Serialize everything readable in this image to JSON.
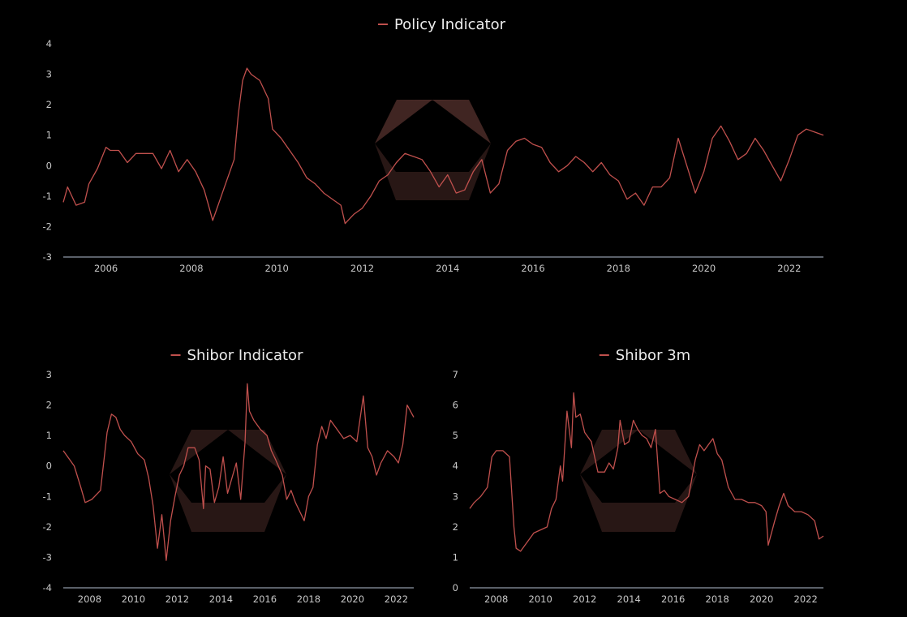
{
  "colors": {
    "background": "#000000",
    "series": "#c0504d",
    "axis": "#8f9aa8",
    "tick_text": "#c8c8c8",
    "legend_text": "#ececec"
  },
  "chart_data": [
    {
      "type": "line",
      "legend_position": "top-center",
      "grid": false,
      "xlim": [
        2005.0,
        2022.8
      ],
      "ylim": [
        -3,
        4
      ],
      "x_ticks": [
        "2006",
        "2008",
        "2010",
        "2012",
        "2014",
        "2016",
        "2018",
        "2020",
        "2022"
      ],
      "y_ticks": [
        "-3",
        "-2",
        "-1",
        "0",
        "1",
        "2",
        "3",
        "4"
      ],
      "series": [
        {
          "name": "Policy Indicator",
          "x": [
            2005.0,
            2005.1,
            2005.3,
            2005.5,
            2005.6,
            2005.8,
            2006.0,
            2006.1,
            2006.3,
            2006.5,
            2006.7,
            2006.9,
            2007.1,
            2007.3,
            2007.5,
            2007.7,
            2007.9,
            2008.1,
            2008.3,
            2008.4,
            2008.5,
            2008.6,
            2008.8,
            2009.0,
            2009.1,
            2009.2,
            2009.3,
            2009.4,
            2009.6,
            2009.8,
            2009.9,
            2010.1,
            2010.3,
            2010.5,
            2010.7,
            2010.9,
            2011.1,
            2011.3,
            2011.5,
            2011.6,
            2011.8,
            2012.0,
            2012.2,
            2012.4,
            2012.6,
            2012.8,
            2013.0,
            2013.2,
            2013.4,
            2013.6,
            2013.8,
            2014.0,
            2014.2,
            2014.4,
            2014.6,
            2014.8,
            2015.0,
            2015.2,
            2015.4,
            2015.6,
            2015.8,
            2016.0,
            2016.2,
            2016.4,
            2016.6,
            2016.8,
            2017.0,
            2017.2,
            2017.4,
            2017.6,
            2017.8,
            2018.0,
            2018.2,
            2018.4,
            2018.6,
            2018.8,
            2019.0,
            2019.2,
            2019.4,
            2019.6,
            2019.8,
            2020.0,
            2020.2,
            2020.4,
            2020.6,
            2020.8,
            2021.0,
            2021.2,
            2021.4,
            2021.6,
            2021.8,
            2022.0,
            2022.2,
            2022.4,
            2022.6,
            2022.8
          ],
          "y": [
            -1.2,
            -0.7,
            -1.3,
            -1.2,
            -0.6,
            -0.1,
            0.6,
            0.5,
            0.5,
            0.1,
            0.4,
            0.4,
            0.4,
            -0.1,
            0.5,
            -0.2,
            0.2,
            -0.2,
            -0.8,
            -1.3,
            -1.8,
            -1.4,
            -0.6,
            0.2,
            1.7,
            2.8,
            3.2,
            3.0,
            2.8,
            2.2,
            1.2,
            0.9,
            0.5,
            0.1,
            -0.4,
            -0.6,
            -0.9,
            -1.1,
            -1.3,
            -1.9,
            -1.6,
            -1.4,
            -1.0,
            -0.5,
            -0.3,
            0.1,
            0.4,
            0.3,
            0.2,
            -0.2,
            -0.7,
            -0.3,
            -0.9,
            -0.8,
            -0.2,
            0.2,
            -0.9,
            -0.6,
            0.5,
            0.8,
            0.9,
            0.7,
            0.6,
            0.1,
            -0.2,
            0.0,
            0.3,
            0.1,
            -0.2,
            0.1,
            -0.3,
            -0.5,
            -1.1,
            -0.9,
            -1.3,
            -0.7,
            -0.7,
            -0.4,
            0.9,
            0.0,
            -0.9,
            -0.2,
            0.9,
            1.3,
            0.8,
            0.2,
            0.4,
            0.9,
            0.5,
            0.0,
            -0.5,
            0.2,
            1.0,
            1.2,
            1.1,
            1.0
          ]
        }
      ]
    },
    {
      "type": "line",
      "legend_position": "top-center",
      "grid": false,
      "xlim": [
        2006.8,
        2022.8
      ],
      "ylim": [
        -4,
        3
      ],
      "x_ticks": [
        "2008",
        "2010",
        "2012",
        "2014",
        "2016",
        "2018",
        "2020",
        "2022"
      ],
      "y_ticks": [
        "-4",
        "-3",
        "-2",
        "-1",
        "0",
        "1",
        "2",
        "3"
      ],
      "series": [
        {
          "name": "Shibor Indicator",
          "x": [
            2006.8,
            2007.0,
            2007.3,
            2007.6,
            2007.8,
            2008.1,
            2008.5,
            2008.8,
            2009.0,
            2009.2,
            2009.4,
            2009.6,
            2009.9,
            2010.2,
            2010.5,
            2010.7,
            2010.9,
            2011.1,
            2011.3,
            2011.5,
            2011.7,
            2011.9,
            2012.1,
            2012.3,
            2012.5,
            2012.8,
            2013.0,
            2013.2,
            2013.3,
            2013.5,
            2013.7,
            2013.9,
            2014.1,
            2014.3,
            2014.5,
            2014.7,
            2014.9,
            2015.1,
            2015.2,
            2015.3,
            2015.5,
            2015.8,
            2016.1,
            2016.3,
            2016.5,
            2016.8,
            2017.0,
            2017.2,
            2017.4,
            2017.6,
            2017.8,
            2018.0,
            2018.2,
            2018.4,
            2018.6,
            2018.8,
            2019.0,
            2019.3,
            2019.6,
            2019.9,
            2020.2,
            2020.5,
            2020.7,
            2020.9,
            2021.1,
            2021.3,
            2021.6,
            2021.9,
            2022.1,
            2022.3,
            2022.5,
            2022.8
          ],
          "y": [
            0.5,
            0.3,
            0.0,
            -0.7,
            -1.2,
            -1.1,
            -0.8,
            1.1,
            1.7,
            1.6,
            1.2,
            1.0,
            0.8,
            0.4,
            0.2,
            -0.4,
            -1.3,
            -2.7,
            -1.6,
            -3.1,
            -1.8,
            -1.0,
            -0.3,
            0.0,
            0.6,
            0.6,
            0.2,
            -1.4,
            0.0,
            -0.1,
            -1.2,
            -0.7,
            0.3,
            -0.9,
            -0.4,
            0.1,
            -1.1,
            0.8,
            2.7,
            1.8,
            1.5,
            1.2,
            1.0,
            0.5,
            0.2,
            -0.3,
            -1.1,
            -0.8,
            -1.2,
            -1.5,
            -1.8,
            -1.0,
            -0.7,
            0.7,
            1.3,
            0.9,
            1.5,
            1.2,
            0.9,
            1.0,
            0.8,
            2.3,
            0.6,
            0.3,
            -0.3,
            0.1,
            0.5,
            0.3,
            0.1,
            0.7,
            2.0,
            1.6
          ]
        }
      ]
    },
    {
      "type": "line",
      "legend_position": "top-center",
      "grid": false,
      "xlim": [
        2006.8,
        2022.8
      ],
      "ylim": [
        0,
        7
      ],
      "x_ticks": [
        "2008",
        "2010",
        "2012",
        "2014",
        "2016",
        "2018",
        "2020",
        "2022"
      ],
      "y_ticks": [
        "0",
        "1",
        "2",
        "3",
        "4",
        "5",
        "6",
        "7"
      ],
      "series": [
        {
          "name": "Shibor 3m",
          "x": [
            2006.8,
            2007.0,
            2007.3,
            2007.6,
            2007.8,
            2008.0,
            2008.3,
            2008.6,
            2008.8,
            2008.9,
            2009.1,
            2009.3,
            2009.5,
            2009.7,
            2010.0,
            2010.3,
            2010.5,
            2010.7,
            2010.9,
            2011.0,
            2011.2,
            2011.4,
            2011.5,
            2011.6,
            2011.8,
            2012.0,
            2012.3,
            2012.6,
            2012.9,
            2013.1,
            2013.3,
            2013.5,
            2013.6,
            2013.8,
            2014.0,
            2014.2,
            2014.4,
            2014.6,
            2014.8,
            2015.0,
            2015.2,
            2015.4,
            2015.6,
            2015.8,
            2016.1,
            2016.4,
            2016.7,
            2017.0,
            2017.2,
            2017.4,
            2017.6,
            2017.8,
            2018.0,
            2018.2,
            2018.5,
            2018.8,
            2019.1,
            2019.4,
            2019.7,
            2020.0,
            2020.2,
            2020.3,
            2020.6,
            2020.8,
            2021.0,
            2021.2,
            2021.5,
            2021.8,
            2022.1,
            2022.4,
            2022.6,
            2022.8
          ],
          "y": [
            2.6,
            2.8,
            3.0,
            3.3,
            4.3,
            4.5,
            4.5,
            4.3,
            2.0,
            1.3,
            1.2,
            1.4,
            1.6,
            1.8,
            1.9,
            2.0,
            2.6,
            2.9,
            4.0,
            3.5,
            5.8,
            4.6,
            6.4,
            5.6,
            5.7,
            5.1,
            4.8,
            3.8,
            3.8,
            4.1,
            3.9,
            4.6,
            5.5,
            4.7,
            4.8,
            5.5,
            5.2,
            5.0,
            4.9,
            4.6,
            5.2,
            3.1,
            3.2,
            3.0,
            2.9,
            2.8,
            3.0,
            4.2,
            4.7,
            4.5,
            4.7,
            4.9,
            4.4,
            4.2,
            3.3,
            2.9,
            2.9,
            2.8,
            2.8,
            2.7,
            2.5,
            1.4,
            2.2,
            2.7,
            3.1,
            2.7,
            2.5,
            2.5,
            2.4,
            2.2,
            1.6,
            1.7
          ]
        }
      ]
    }
  ]
}
